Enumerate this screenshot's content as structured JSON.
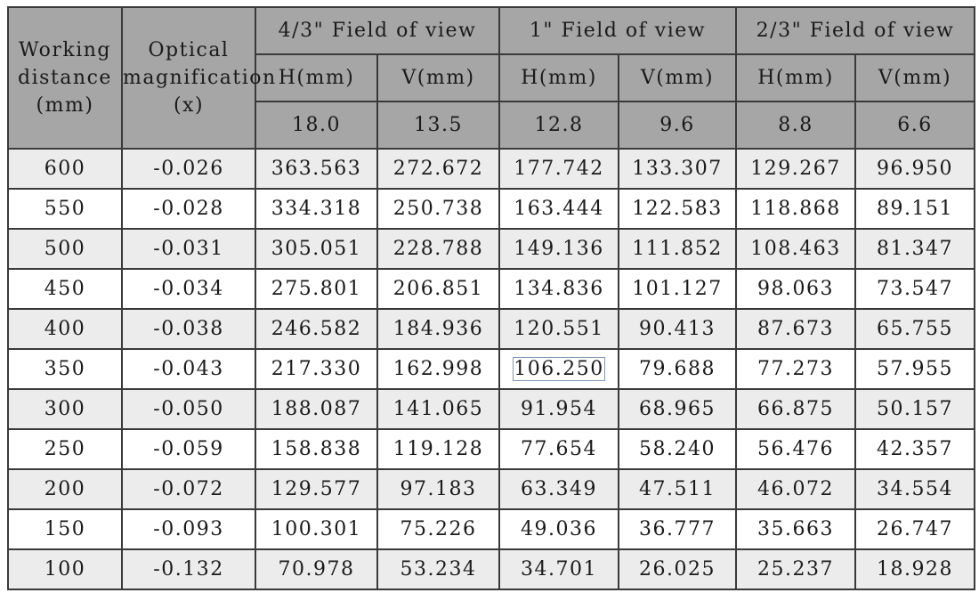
{
  "table": {
    "stub_headers": {
      "working_distance": [
        "Working",
        "distance",
        "(mm)"
      ],
      "optical_magnification": [
        "Optical",
        "magnification",
        "(x)"
      ]
    },
    "fov_groups": [
      {
        "label": "4/3\" Field of view",
        "h_label": "H(mm)",
        "v_label": "V(mm)",
        "sensor_h": "18.0",
        "sensor_v": "13.5"
      },
      {
        "label": "1\" Field of view",
        "h_label": "H(mm)",
        "v_label": "V(mm)",
        "sensor_h": "12.8",
        "sensor_v": "9.6"
      },
      {
        "label": "2/3\" Field of view",
        "h_label": "H(mm)",
        "v_label": "V(mm)",
        "sensor_h": "8.8",
        "sensor_v": "6.6"
      }
    ],
    "rows": [
      [
        "600",
        "-0.026",
        "363.563",
        "272.672",
        "177.742",
        "133.307",
        "129.267",
        "96.950"
      ],
      [
        "550",
        "-0.028",
        "334.318",
        "250.738",
        "163.444",
        "122.583",
        "118.868",
        "89.151"
      ],
      [
        "500",
        "-0.031",
        "305.051",
        "228.788",
        "149.136",
        "111.852",
        "108.463",
        "81.347"
      ],
      [
        "450",
        "-0.034",
        "275.801",
        "206.851",
        "134.836",
        "101.127",
        "98.063",
        "73.547"
      ],
      [
        "400",
        "-0.038",
        "246.582",
        "184.936",
        "120.551",
        "90.413",
        "87.673",
        "65.755"
      ],
      [
        "350",
        "-0.043",
        "217.330",
        "162.998",
        "106.250",
        "79.688",
        "77.273",
        "57.955"
      ],
      [
        "300",
        "-0.050",
        "188.087",
        "141.065",
        "91.954",
        "68.965",
        "66.875",
        "50.157"
      ],
      [
        "250",
        "-0.059",
        "158.838",
        "119.128",
        "77.654",
        "58.240",
        "56.476",
        "42.357"
      ],
      [
        "200",
        "-0.072",
        "129.577",
        "97.183",
        "63.349",
        "47.511",
        "46.072",
        "34.554"
      ],
      [
        "150",
        "-0.093",
        "100.301",
        "75.226",
        "49.036",
        "36.777",
        "35.663",
        "26.747"
      ],
      [
        "100",
        "-0.132",
        "70.978",
        "53.234",
        "34.701",
        "26.025",
        "25.237",
        "18.928"
      ]
    ],
    "colors": {
      "header_bg": "#a6a6a6",
      "odd_row_bg": "#ececec",
      "even_row_bg": "#ffffff",
      "border": "#3a3a3a"
    }
  }
}
